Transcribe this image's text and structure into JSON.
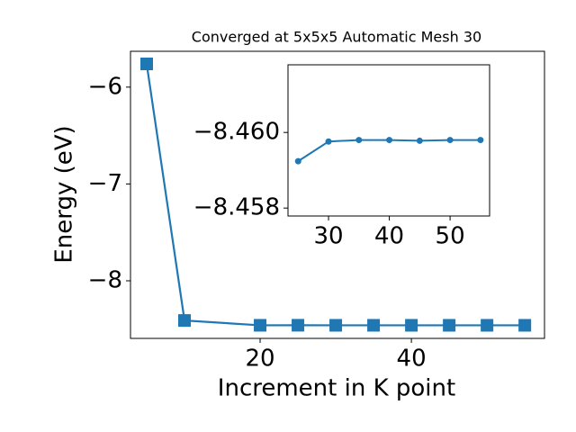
{
  "chart_data": [
    {
      "type": "line",
      "title": "Converged at 5x5x5 Automatic Mesh 30",
      "x_label": "Increment in K point",
      "y_label": "Energy (eV)",
      "x": [
        5,
        10,
        20,
        25,
        30,
        35,
        40,
        45,
        50,
        55
      ],
      "series": [
        {
          "color": "#1f77b4",
          "marker": "square",
          "values": [
            -5.76,
            -8.41,
            -8.4597,
            -8.4592,
            -8.4598,
            -8.4598,
            -8.4598,
            -8.4598,
            -8.4598,
            -8.4598
          ]
        }
      ],
      "xlim": [
        2.86,
        57.6
      ],
      "ylim": [
        -8.595,
        -5.63
      ],
      "xticks": [
        20,
        40
      ],
      "yticks": [
        {
          "value": -8,
          "label": "−8"
        },
        {
          "value": -7,
          "label": "−7"
        },
        {
          "value": -6,
          "label": "−6"
        }
      ]
    },
    {
      "type": "line",
      "x": [
        25,
        30,
        35,
        40,
        45,
        50,
        55
      ],
      "series": [
        {
          "color": "#1f77b4",
          "marker": "circle",
          "values": [
            -8.45924,
            -8.45976,
            -8.4598,
            -8.4598,
            -8.45978,
            -8.4598,
            -8.4598
          ]
        }
      ],
      "xlim": [
        23.33,
        56.5
      ],
      "ylim": [
        -8.45779,
        -8.46179
      ],
      "xticks": [
        30,
        40,
        50
      ],
      "yticks": [
        {
          "value": -8.46,
          "label": "−8.460"
        },
        {
          "value": -8.458,
          "label": "−8.458"
        }
      ]
    }
  ]
}
